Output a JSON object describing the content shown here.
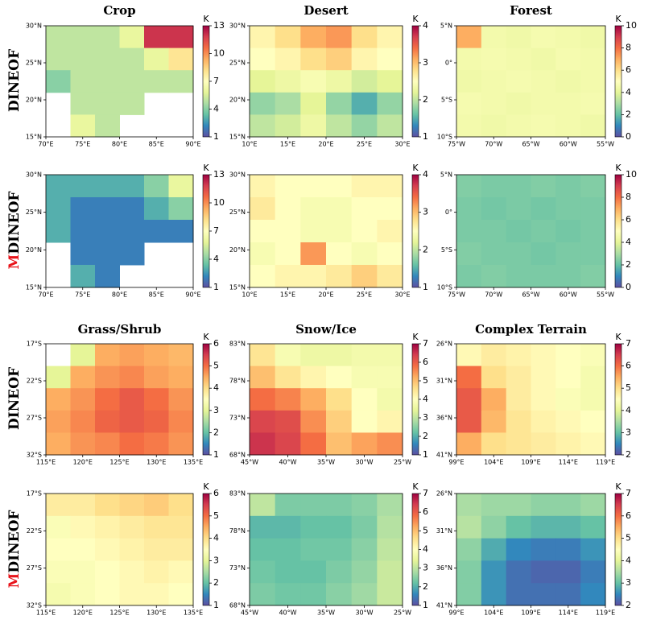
{
  "chart_data": [
    {
      "type": "heatmap",
      "title": "Crop",
      "ylabel": "DINEOF",
      "colorbar_label": "K",
      "clim": [
        1,
        13
      ],
      "cticks": [
        1,
        4,
        7,
        10,
        13
      ],
      "xlim": [
        70,
        90
      ],
      "xticks": [
        {
          "value": 70,
          "label": "70°E"
        },
        {
          "value": 75,
          "label": "75°E"
        },
        {
          "value": 80,
          "label": "80°E"
        },
        {
          "value": 85,
          "label": "85°E"
        },
        {
          "value": 90,
          "label": "90°E"
        }
      ],
      "ylim": [
        15,
        30
      ],
      "yticks": [
        {
          "value": 15,
          "label": "15°N"
        },
        {
          "value": 20,
          "label": "20°N"
        },
        {
          "value": 25,
          "label": "25°N"
        },
        {
          "value": 30,
          "label": "30°N"
        }
      ],
      "z": [
        [
          5,
          5,
          5,
          6,
          12,
          12
        ],
        [
          5,
          5,
          5,
          5,
          6,
          8
        ],
        [
          4,
          5,
          5,
          5,
          5,
          5
        ],
        [
          null,
          5,
          5,
          5,
          null,
          null
        ],
        [
          null,
          6,
          5,
          null,
          null,
          null
        ]
      ]
    },
    {
      "type": "heatmap",
      "title": "Desert",
      "colorbar_label": "K",
      "clim": [
        1,
        4
      ],
      "cticks": [
        1,
        2,
        3,
        4
      ],
      "xlim": [
        10,
        30
      ],
      "xticks": [
        {
          "value": 10,
          "label": "10°E"
        },
        {
          "value": 15,
          "label": "15°E"
        },
        {
          "value": 20,
          "label": "20°E"
        },
        {
          "value": 25,
          "label": "25°E"
        },
        {
          "value": 30,
          "label": "30°E"
        }
      ],
      "ylim": [
        15,
        30
      ],
      "yticks": [
        {
          "value": 15,
          "label": "15°N"
        },
        {
          "value": 20,
          "label": "20°N"
        },
        {
          "value": 25,
          "label": "25°N"
        },
        {
          "value": 30,
          "label": "30°N"
        }
      ],
      "z": [
        [
          2.6,
          2.8,
          3.1,
          3.2,
          2.8,
          2.6
        ],
        [
          2.5,
          2.6,
          2.8,
          2.9,
          2.6,
          2.5
        ],
        [
          2.2,
          2.3,
          2.4,
          2.3,
          2.1,
          2.2
        ],
        [
          1.8,
          1.9,
          2.2,
          1.8,
          1.5,
          1.8
        ],
        [
          2.0,
          2.1,
          2.3,
          2.0,
          1.8,
          2.0
        ]
      ]
    },
    {
      "type": "heatmap",
      "title": "Forest",
      "colorbar_label": "K",
      "clim": [
        0,
        10
      ],
      "cticks": [
        0,
        2,
        4,
        6,
        8,
        10
      ],
      "xlim": [
        -75,
        -55
      ],
      "xticks": [
        {
          "value": -75,
          "label": "75°W"
        },
        {
          "value": -70,
          "label": "70°W"
        },
        {
          "value": -65,
          "label": "65°W"
        },
        {
          "value": -60,
          "label": "60°W"
        },
        {
          "value": -55,
          "label": "55°W"
        }
      ],
      "ylim": [
        -10,
        5
      ],
      "yticks": [
        {
          "value": -10,
          "label": "10°S"
        },
        {
          "value": -5,
          "label": "5°S"
        },
        {
          "value": 0,
          "label": "0°"
        },
        {
          "value": 5,
          "label": "5°N"
        }
      ],
      "z": [
        [
          7,
          4.5,
          4.4,
          4.6,
          4.5,
          4.4
        ],
        [
          4.5,
          4.6,
          4.5,
          4.4,
          4.6,
          4.5
        ],
        [
          4.4,
          4.5,
          4.6,
          4.5,
          4.4,
          4.5
        ],
        [
          4.6,
          4.5,
          4.4,
          4.5,
          4.5,
          4.6
        ],
        [
          4.5,
          4.4,
          4.5,
          4.6,
          4.5,
          4.4
        ]
      ]
    },
    {
      "type": "heatmap",
      "ylabel": "MDINEOF",
      "colorbar_label": "K",
      "clim": [
        1,
        13
      ],
      "cticks": [
        1,
        4,
        7,
        10,
        13
      ],
      "xlim": [
        70,
        90
      ],
      "xticks": [
        {
          "value": 70,
          "label": "70°E"
        },
        {
          "value": 75,
          "label": "75°E"
        },
        {
          "value": 80,
          "label": "80°E"
        },
        {
          "value": 85,
          "label": "85°E"
        },
        {
          "value": 90,
          "label": "90°E"
        }
      ],
      "ylim": [
        15,
        30
      ],
      "yticks": [
        {
          "value": 15,
          "label": "15°N"
        },
        {
          "value": 20,
          "label": "20°N"
        },
        {
          "value": 25,
          "label": "25°N"
        },
        {
          "value": 30,
          "label": "30°N"
        }
      ],
      "z": [
        [
          3,
          3,
          3,
          3,
          4,
          6
        ],
        [
          3,
          2,
          2,
          2,
          3,
          4
        ],
        [
          3,
          2,
          2,
          2,
          2,
          2
        ],
        [
          null,
          2,
          2,
          2,
          null,
          null
        ],
        [
          null,
          3,
          2,
          null,
          null,
          null
        ]
      ]
    },
    {
      "type": "heatmap",
      "colorbar_label": "K",
      "clim": [
        1,
        4
      ],
      "cticks": [
        1,
        2,
        3,
        4
      ],
      "xlim": [
        10,
        30
      ],
      "xticks": [
        {
          "value": 10,
          "label": "10°E"
        },
        {
          "value": 15,
          "label": "15°E"
        },
        {
          "value": 20,
          "label": "20°E"
        },
        {
          "value": 25,
          "label": "25°E"
        },
        {
          "value": 30,
          "label": "30°E"
        }
      ],
      "ylim": [
        15,
        30
      ],
      "yticks": [
        {
          "value": 15,
          "label": "15°N"
        },
        {
          "value": 20,
          "label": "20°N"
        },
        {
          "value": 25,
          "label": "25°N"
        },
        {
          "value": 30,
          "label": "30°N"
        }
      ],
      "z": [
        [
          2.6,
          2.5,
          2.5,
          2.5,
          2.6,
          2.6
        ],
        [
          2.7,
          2.5,
          2.4,
          2.4,
          2.5,
          2.5
        ],
        [
          2.5,
          2.5,
          2.4,
          2.4,
          2.5,
          2.6
        ],
        [
          2.4,
          2.5,
          3.2,
          2.5,
          2.4,
          2.5
        ],
        [
          2.5,
          2.6,
          2.6,
          2.7,
          2.9,
          2.7
        ]
      ]
    },
    {
      "type": "heatmap",
      "colorbar_label": "K",
      "clim": [
        0,
        10
      ],
      "cticks": [
        0,
        2,
        4,
        6,
        8,
        10
      ],
      "xlim": [
        -75,
        -55
      ],
      "xticks": [
        {
          "value": -75,
          "label": "75°W"
        },
        {
          "value": -70,
          "label": "70°W"
        },
        {
          "value": -65,
          "label": "65°W"
        },
        {
          "value": -60,
          "label": "60°W"
        },
        {
          "value": -55,
          "label": "55°W"
        }
      ],
      "ylim": [
        -10,
        5
      ],
      "yticks": [
        {
          "value": -10,
          "label": "10°S"
        },
        {
          "value": -5,
          "label": "5°S"
        },
        {
          "value": 0,
          "label": "0°"
        },
        {
          "value": 5,
          "label": "5°N"
        }
      ],
      "z": [
        [
          2.4,
          2.3,
          2.3,
          2.4,
          2.3,
          2.4
        ],
        [
          2.3,
          2.2,
          2.3,
          2.2,
          2.3,
          2.3
        ],
        [
          2.3,
          2.3,
          2.2,
          2.3,
          2.2,
          2.3
        ],
        [
          2.4,
          2.3,
          2.3,
          2.2,
          2.3,
          2.3
        ],
        [
          2.3,
          2.4,
          2.3,
          2.3,
          2.3,
          2.4
        ]
      ]
    },
    {
      "type": "heatmap",
      "title": "Grass/Shrub",
      "ylabel": "DINEOF",
      "colorbar_label": "K",
      "clim": [
        1,
        6
      ],
      "cticks": [
        1,
        2,
        3,
        4,
        5,
        6
      ],
      "xlim": [
        115,
        135
      ],
      "xticks": [
        {
          "value": 115,
          "label": "115°E"
        },
        {
          "value": 120,
          "label": "120°E"
        },
        {
          "value": 125,
          "label": "125°E"
        },
        {
          "value": 130,
          "label": "130°E"
        },
        {
          "value": 135,
          "label": "135°E"
        }
      ],
      "ylim": [
        -32,
        -17
      ],
      "yticks": [
        {
          "value": -32,
          "label": "32°S"
        },
        {
          "value": -27,
          "label": "27°S"
        },
        {
          "value": -22,
          "label": "22°S"
        },
        {
          "value": -17,
          "label": "17°S"
        }
      ],
      "z": [
        [
          null,
          3,
          4.5,
          4.6,
          4.5,
          4.4
        ],
        [
          3,
          4.5,
          4.7,
          4.8,
          4.6,
          4.5
        ],
        [
          4.5,
          4.7,
          5.0,
          5.2,
          5.0,
          4.7
        ],
        [
          4.6,
          4.8,
          5.1,
          5.2,
          5.1,
          4.8
        ],
        [
          4.5,
          4.7,
          4.8,
          5.0,
          4.9,
          4.7
        ]
      ]
    },
    {
      "type": "heatmap",
      "title": "Snow/Ice",
      "colorbar_label": "K",
      "clim": [
        1,
        7
      ],
      "cticks": [
        1,
        2,
        3,
        4,
        5,
        6,
        7
      ],
      "xlim": [
        -45,
        -25
      ],
      "xticks": [
        {
          "value": -45,
          "label": "45°W"
        },
        {
          "value": -40,
          "label": "40°W"
        },
        {
          "value": -35,
          "label": "35°W"
        },
        {
          "value": -30,
          "label": "30°W"
        },
        {
          "value": -25,
          "label": "25°W"
        }
      ],
      "ylim": [
        68,
        83
      ],
      "yticks": [
        {
          "value": 68,
          "label": "68°N"
        },
        {
          "value": 73,
          "label": "73°N"
        },
        {
          "value": 78,
          "label": "78°N"
        },
        {
          "value": 83,
          "label": "83°N"
        }
      ],
      "z": [
        [
          4.5,
          3.8,
          3.6,
          3.6,
          3.7,
          3.7
        ],
        [
          5,
          4.5,
          4.2,
          4,
          3.8,
          3.8
        ],
        [
          5.8,
          5.6,
          5.2,
          4.6,
          4,
          3.7
        ],
        [
          6.3,
          6.2,
          5.5,
          4.8,
          4,
          4.2
        ],
        [
          6.5,
          6.3,
          5.8,
          5,
          5.3,
          5.5
        ]
      ]
    },
    {
      "type": "heatmap",
      "title": "Complex Terrain",
      "colorbar_label": "K",
      "clim": [
        2,
        7
      ],
      "cticks": [
        2,
        3,
        4,
        5,
        6,
        7
      ],
      "xlim": [
        99,
        119
      ],
      "xticks": [
        {
          "value": 99,
          "label": "99°E"
        },
        {
          "value": 104,
          "label": "104°E"
        },
        {
          "value": 109,
          "label": "109°E"
        },
        {
          "value": 114,
          "label": "114°E"
        },
        {
          "value": 119,
          "label": "119°E"
        }
      ],
      "ylim": [
        41,
        26
      ],
      "yticks": [
        {
          "value": 41,
          "label": "41°N"
        },
        {
          "value": 36,
          "label": "36°N"
        },
        {
          "value": 31,
          "label": "31°N"
        },
        {
          "value": 26,
          "label": "26°N"
        }
      ],
      "z": [
        [
          4.6,
          4.8,
          4.7,
          4.6,
          4.5,
          4.4
        ],
        [
          6,
          5,
          4.8,
          4.6,
          4.5,
          4.3
        ],
        [
          6.2,
          5.5,
          4.8,
          4.6,
          4.4,
          4.3
        ],
        [
          6.2,
          5.4,
          4.9,
          4.7,
          4.6,
          4.5
        ],
        [
          5.5,
          5,
          4.9,
          4.8,
          4.7,
          4.6
        ]
      ]
    },
    {
      "type": "heatmap",
      "ylabel": "MDINEOF",
      "colorbar_label": "K",
      "clim": [
        1,
        6
      ],
      "cticks": [
        1,
        2,
        3,
        4,
        5,
        6
      ],
      "xlim": [
        115,
        135
      ],
      "xticks": [
        {
          "value": 115,
          "label": "115°E"
        },
        {
          "value": 120,
          "label": "120°E"
        },
        {
          "value": 125,
          "label": "125°E"
        },
        {
          "value": 130,
          "label": "130°E"
        },
        {
          "value": 135,
          "label": "135°E"
        }
      ],
      "ylim": [
        -32,
        -17
      ],
      "yticks": [
        {
          "value": -32,
          "label": "32°S"
        },
        {
          "value": -27,
          "label": "27°S"
        },
        {
          "value": -22,
          "label": "22°S"
        },
        {
          "value": -17,
          "label": "17°S"
        }
      ],
      "z": [
        [
          3.8,
          3.8,
          4.0,
          4.1,
          4.2,
          4.0
        ],
        [
          3.4,
          3.6,
          3.7,
          3.8,
          3.9,
          3.9
        ],
        [
          3.5,
          3.5,
          3.6,
          3.7,
          3.8,
          3.8
        ],
        [
          3.4,
          3.4,
          3.5,
          3.6,
          3.7,
          3.6
        ],
        [
          3.3,
          3.4,
          3.5,
          3.6,
          3.6,
          3.5
        ]
      ]
    },
    {
      "type": "heatmap",
      "colorbar_label": "K",
      "clim": [
        1,
        7
      ],
      "cticks": [
        1,
        2,
        3,
        4,
        5,
        6,
        7
      ],
      "xlim": [
        -45,
        -25
      ],
      "xticks": [
        {
          "value": -45,
          "label": "45°W"
        },
        {
          "value": -40,
          "label": "40°W"
        },
        {
          "value": -35,
          "label": "35°W"
        },
        {
          "value": -30,
          "label": "30°W"
        },
        {
          "value": -25,
          "label": "25°W"
        }
      ],
      "ylim": [
        68,
        83
      ],
      "yticks": [
        {
          "value": 68,
          "label": "68°N"
        },
        {
          "value": 73,
          "label": "73°N"
        },
        {
          "value": 78,
          "label": "78°N"
        },
        {
          "value": 83,
          "label": "83°N"
        }
      ],
      "z": [
        [
          3,
          2.4,
          2.4,
          2.4,
          2.5,
          2.8
        ],
        [
          2.1,
          2.1,
          2.2,
          2.2,
          2.4,
          2.9
        ],
        [
          2.2,
          2.2,
          2.3,
          2.3,
          2.5,
          3.0
        ],
        [
          2.3,
          2.2,
          2.2,
          2.4,
          2.6,
          3.1
        ],
        [
          2.4,
          2.3,
          2.3,
          2.5,
          2.7,
          3.1
        ]
      ]
    },
    {
      "type": "heatmap",
      "colorbar_label": "K",
      "clim": [
        2,
        7
      ],
      "cticks": [
        2,
        3,
        4,
        5,
        6,
        7
      ],
      "xlim": [
        99,
        119
      ],
      "xticks": [
        {
          "value": 99,
          "label": "99°E"
        },
        {
          "value": 104,
          "label": "104°E"
        },
        {
          "value": 109,
          "label": "109°E"
        },
        {
          "value": 114,
          "label": "114°E"
        },
        {
          "value": 119,
          "label": "119°E"
        }
      ],
      "ylim": [
        41,
        26
      ],
      "yticks": [
        {
          "value": 41,
          "label": "41°N"
        },
        {
          "value": 36,
          "label": "36°N"
        },
        {
          "value": 31,
          "label": "31°N"
        },
        {
          "value": 26,
          "label": "26°N"
        }
      ],
      "z": [
        [
          3.5,
          3.4,
          3.4,
          3.3,
          3.3,
          3.4
        ],
        [
          3.6,
          3.3,
          3.0,
          2.9,
          2.9,
          3.0
        ],
        [
          3.3,
          2.8,
          2.5,
          2.4,
          2.4,
          2.6
        ],
        [
          3.2,
          2.6,
          2.3,
          2.2,
          2.2,
          2.4
        ],
        [
          3.2,
          2.6,
          2.3,
          2.3,
          2.3,
          2.5
        ]
      ]
    }
  ]
}
